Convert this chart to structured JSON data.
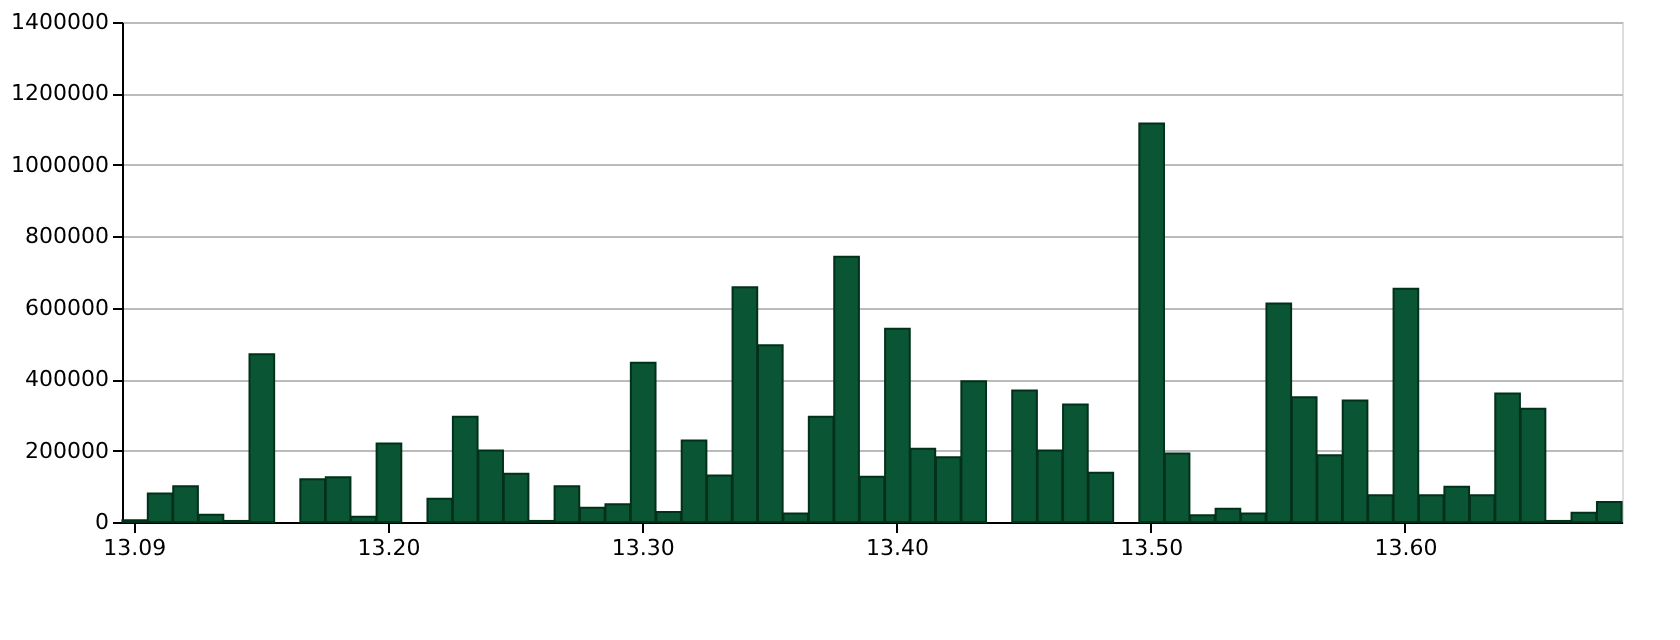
{
  "chart_data": {
    "type": "bar",
    "categories": [
      "13.09",
      null,
      null,
      null,
      null,
      null,
      null,
      null,
      null,
      null,
      "13.20",
      null,
      null,
      null,
      null,
      null,
      null,
      null,
      null,
      null,
      "13.30",
      null,
      null,
      null,
      null,
      null,
      null,
      null,
      null,
      null,
      "13.40",
      null,
      null,
      null,
      null,
      null,
      null,
      null,
      null,
      null,
      "13.50",
      null,
      null,
      null,
      null,
      null,
      null,
      null,
      null,
      null,
      "13.60",
      null,
      null,
      null,
      null,
      null,
      null,
      null,
      null
    ],
    "values": [
      5000,
      80000,
      100000,
      20000,
      3000,
      470000,
      null,
      120000,
      125000,
      15000,
      220000,
      null,
      65000,
      295000,
      200000,
      135000,
      3000,
      100000,
      40000,
      50000,
      446000,
      28000,
      228000,
      130000,
      657000,
      495000,
      24000,
      295000,
      743000,
      127000,
      541000,
      205000,
      181000,
      394000,
      null,
      368000,
      200000,
      329000,
      138000,
      null,
      1116000,
      192000,
      19000,
      37000,
      24000,
      612000,
      349000,
      187000,
      340000,
      75000,
      653000,
      75000,
      99000,
      75000,
      360000,
      317000,
      3000,
      26000,
      56000
    ],
    "color": "#0a5533",
    "ylim": [
      0,
      1400000
    ],
    "yticks": [
      0,
      200000,
      400000,
      600000,
      800000,
      1000000,
      1200000,
      1400000
    ],
    "grid": "y"
  }
}
